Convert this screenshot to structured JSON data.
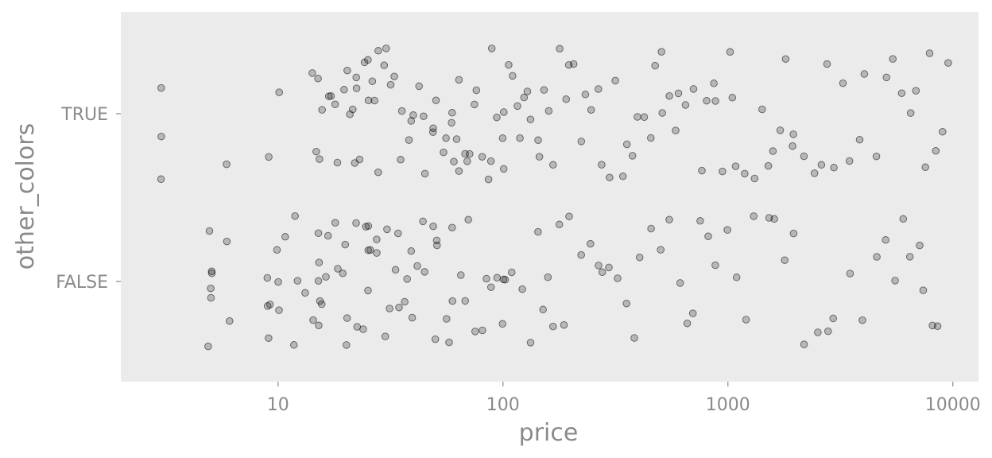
{
  "chart_data": {
    "type": "scatter",
    "jitter": true,
    "x_scale": "log10",
    "xlabel": "price",
    "ylabel": "other_colors",
    "xlim": [
      2.0,
      13000
    ],
    "x_ticks": [
      {
        "value": 10,
        "label": "10"
      },
      {
        "value": 100,
        "label": "100"
      },
      {
        "value": 1000,
        "label": "1000"
      },
      {
        "value": 10000,
        "label": "10000"
      }
    ],
    "categories": [
      "FALSE",
      "TRUE"
    ],
    "grid": false,
    "panel_background": "#ebebeb",
    "point_color": "#000000",
    "point_alpha": 0.25,
    "groups": [
      {
        "category": "TRUE",
        "prices": [
          3,
          3,
          3,
          6,
          9,
          10,
          14,
          15,
          15,
          15,
          16,
          17,
          17,
          18,
          18,
          20,
          20,
          21,
          21,
          22,
          22,
          22,
          23,
          24,
          25,
          25,
          26,
          27,
          28,
          28,
          30,
          30,
          32,
          33,
          35,
          35,
          38,
          40,
          40,
          42,
          45,
          45,
          48,
          50,
          50,
          55,
          55,
          58,
          60,
          60,
          62,
          65,
          65,
          68,
          70,
          72,
          75,
          78,
          80,
          85,
          88,
          90,
          95,
          99,
          100,
          100,
          105,
          110,
          115,
          120,
          125,
          130,
          135,
          140,
          145,
          150,
          160,
          170,
          180,
          190,
          200,
          210,
          220,
          230,
          250,
          260,
          280,
          300,
          320,
          340,
          360,
          380,
          400,
          420,
          450,
          480,
          500,
          520,
          550,
          580,
          600,
          650,
          700,
          750,
          800,
          850,
          900,
          950,
          999,
          1050,
          1100,
          1200,
          1300,
          1400,
          1500,
          1600,
          1700,
          1800,
          1900,
          2000,
          2200,
          2400,
          2600,
          2800,
          3000,
          3200,
          3500,
          3800,
          4000,
          4500,
          5000,
          5500,
          6000,
          6500,
          7000,
          7500,
          8000,
          8500,
          9000,
          9500
        ]
      },
      {
        "category": "FALSE",
        "prices": [
          5,
          5,
          5,
          5,
          5,
          5,
          6,
          6,
          9,
          9,
          9,
          9,
          10,
          10,
          10,
          11,
          12,
          12,
          12,
          13,
          14,
          15,
          15,
          15,
          15,
          15,
          16,
          16,
          17,
          18,
          18,
          19,
          20,
          20,
          20,
          22,
          23,
          24,
          25,
          25,
          25,
          25,
          26,
          28,
          28,
          30,
          30,
          32,
          33,
          35,
          35,
          36,
          38,
          40,
          40,
          42,
          45,
          45,
          48,
          50,
          50,
          52,
          55,
          58,
          60,
          60,
          65,
          68,
          70,
          75,
          80,
          85,
          90,
          95,
          99,
          100,
          100,
          110,
          120,
          130,
          140,
          150,
          160,
          170,
          180,
          190,
          200,
          220,
          240,
          260,
          280,
          300,
          320,
          350,
          380,
          400,
          450,
          500,
          550,
          600,
          650,
          700,
          750,
          800,
          900,
          1000,
          1100,
          1200,
          1300,
          1500,
          1600,
          1800,
          2000,
          2200,
          2500,
          2800,
          3000,
          3500,
          4000,
          4500,
          5000,
          5500,
          6000,
          6500,
          7000,
          7500,
          8000,
          8500
        ]
      }
    ]
  }
}
